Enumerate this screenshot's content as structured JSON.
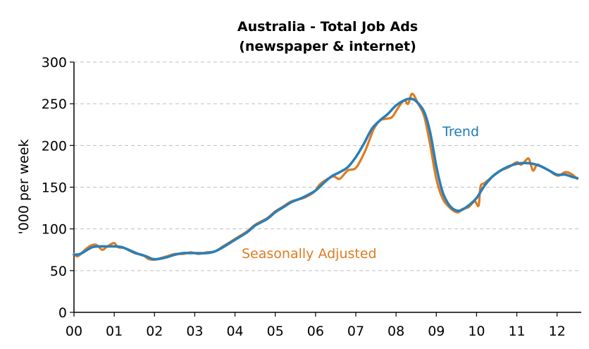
{
  "chart_data": {
    "type": "line",
    "title": "Australia - Total Job Ads",
    "subtitle": "(newspaper & internet)",
    "ylabel": "'000 per week",
    "xlabel": "",
    "ylim": [
      0,
      300
    ],
    "xlim": [
      0,
      12.6
    ],
    "y_ticks": [
      0,
      50,
      100,
      150,
      200,
      250,
      300
    ],
    "y_tick_labels": [
      "0",
      "50",
      "100",
      "150",
      "200",
      "250",
      "300"
    ],
    "x_ticks": [
      0,
      1,
      2,
      3,
      4,
      5,
      6,
      7,
      8,
      9,
      10,
      11,
      12
    ],
    "x_tick_labels": [
      "00",
      "01",
      "02",
      "03",
      "04",
      "05",
      "06",
      "07",
      "08",
      "09",
      "10",
      "11",
      "12"
    ],
    "grid": "horizontal dashed",
    "annotations": [
      {
        "text": "Trend",
        "series": "trend",
        "color": "#1f7bb6"
      },
      {
        "text": "Seasonally Adjusted",
        "series": "sa",
        "color": "#e07b1f"
      }
    ],
    "series": [
      {
        "key": "sa",
        "color": "#e07b1f",
        "x": [
          0,
          0.08,
          0.17,
          0.3,
          0.42,
          0.55,
          0.7,
          0.8,
          0.9,
          1.0,
          1.1,
          1.25,
          1.5,
          1.7,
          1.85,
          2.0,
          2.15,
          2.3,
          2.5,
          2.7,
          2.9,
          3.1,
          3.3,
          3.5,
          3.7,
          4.0,
          4.3,
          4.5,
          4.8,
          5.0,
          5.2,
          5.4,
          5.7,
          5.9,
          6.0,
          6.1,
          6.3,
          6.45,
          6.6,
          6.8,
          7.0,
          7.2,
          7.35,
          7.45,
          7.6,
          7.75,
          7.9,
          8.05,
          8.2,
          8.3,
          8.4,
          8.55,
          8.7,
          8.85,
          9.0,
          9.15,
          9.3,
          9.45,
          9.55,
          9.65,
          9.8,
          9.95,
          10.05,
          10.1,
          10.2,
          10.4,
          10.6,
          10.8,
          11.0,
          11.1,
          11.2,
          11.3,
          11.4,
          11.5,
          11.6,
          11.8,
          11.95,
          12.05,
          12.2,
          12.35,
          12.5
        ],
        "values": [
          70,
          67,
          70,
          76,
          80,
          81,
          75,
          78,
          81,
          83,
          78,
          77,
          71,
          69,
          64,
          63,
          65,
          67,
          70,
          70,
          72,
          70,
          72,
          73,
          79,
          88,
          97,
          105,
          113,
          121,
          127,
          133,
          137,
          142,
          146,
          153,
          160,
          163,
          160,
          170,
          173,
          190,
          208,
          220,
          230,
          232,
          234,
          245,
          254,
          250,
          262,
          250,
          235,
          200,
          160,
          137,
          127,
          121,
          120,
          124,
          126,
          133,
          128,
          151,
          155,
          163,
          170,
          174,
          180,
          177,
          181,
          184,
          170,
          177,
          175,
          170,
          165,
          164,
          168,
          166,
          160
        ],
        "note": "approximate, read from chart"
      },
      {
        "key": "trend",
        "color": "#2a7fb8",
        "x": [
          0,
          0.15,
          0.3,
          0.45,
          0.6,
          0.8,
          1.0,
          1.2,
          1.4,
          1.6,
          1.8,
          1.95,
          2.1,
          2.3,
          2.5,
          2.7,
          2.9,
          3.1,
          3.3,
          3.5,
          3.7,
          4.0,
          4.3,
          4.5,
          4.8,
          5.0,
          5.2,
          5.4,
          5.7,
          6.0,
          6.2,
          6.4,
          6.6,
          6.8,
          7.0,
          7.2,
          7.4,
          7.6,
          7.8,
          8.0,
          8.2,
          8.35,
          8.5,
          8.7,
          8.85,
          9.0,
          9.15,
          9.3,
          9.45,
          9.6,
          9.8,
          10.0,
          10.2,
          10.4,
          10.6,
          10.8,
          11.0,
          11.2,
          11.4,
          11.6,
          11.8,
          12.0,
          12.2,
          12.4,
          12.5
        ],
        "values": [
          69,
          70,
          74,
          78,
          79,
          79,
          79,
          78,
          74,
          70,
          67,
          64,
          64,
          66,
          69,
          71,
          71,
          71,
          71,
          73,
          78,
          87,
          96,
          104,
          112,
          120,
          126,
          132,
          138,
          146,
          155,
          163,
          168,
          174,
          186,
          202,
          220,
          230,
          238,
          248,
          254,
          256,
          253,
          240,
          215,
          175,
          145,
          130,
          123,
          122,
          128,
          137,
          152,
          163,
          170,
          175,
          178,
          179,
          178,
          175,
          170,
          165,
          165,
          162,
          161
        ],
        "note": "approximate, read from chart"
      }
    ]
  }
}
